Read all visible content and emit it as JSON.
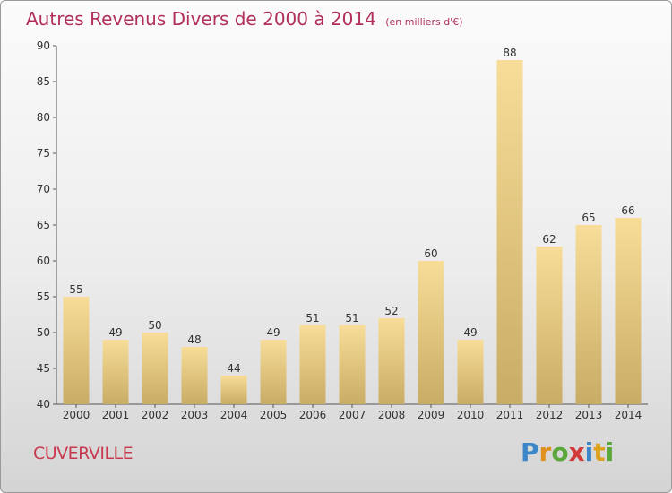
{
  "header": {
    "title": "Autres Revenus Divers de 2000 à 2014",
    "unit": "(en milliers d'€)"
  },
  "footer": {
    "city": "CUVERVILLE",
    "logo": "Proxiti"
  },
  "colors": {
    "title": "#b0305a",
    "bar_light": "#f7dd98",
    "bar_dark": "#c9ac66",
    "axis": "#555555"
  },
  "chart_data": {
    "type": "bar",
    "title": "Autres Revenus Divers de 2000 à 2014",
    "subtitle": "(en milliers d'€)",
    "categories": [
      "2000",
      "2001",
      "2002",
      "2003",
      "2004",
      "2005",
      "2006",
      "2007",
      "2008",
      "2009",
      "2010",
      "2011",
      "2012",
      "2013",
      "2014"
    ],
    "values": [
      55,
      49,
      50,
      48,
      44,
      49,
      51,
      51,
      52,
      60,
      49,
      88,
      62,
      65,
      66
    ],
    "ylim": [
      40,
      90
    ],
    "yticks": [
      40,
      45,
      50,
      55,
      60,
      65,
      70,
      75,
      80,
      85,
      90
    ],
    "grid": false,
    "data_labels": true
  }
}
